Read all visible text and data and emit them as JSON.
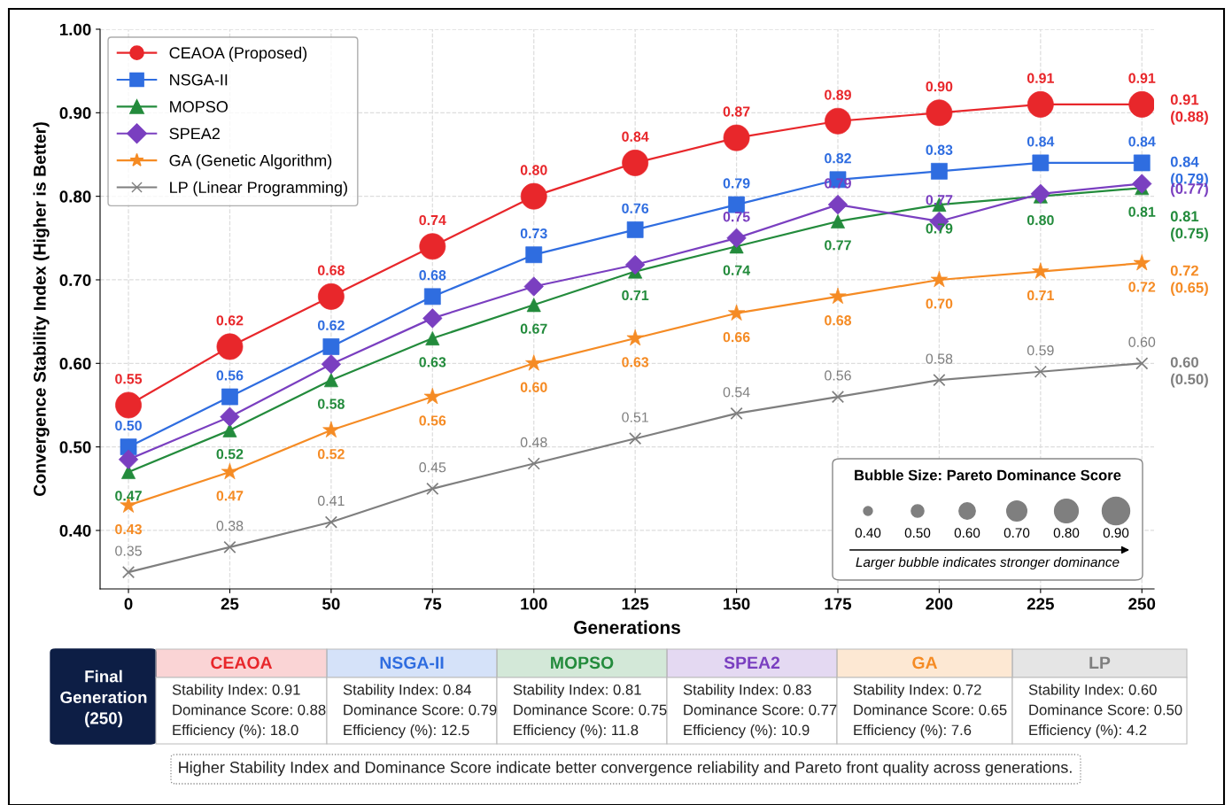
{
  "chart_data": {
    "type": "line",
    "xlabel": "Generations",
    "ylabel": "Convergence Stability Index (Higher is Better)",
    "x": [
      0,
      25,
      50,
      75,
      100,
      125,
      150,
      175,
      200,
      225,
      250
    ],
    "xlim": [
      -7,
      253
    ],
    "ylim": [
      0.33,
      1.0
    ],
    "xticks": [
      0,
      25,
      50,
      75,
      100,
      125,
      150,
      175,
      200,
      225,
      250
    ],
    "yticks": [
      {
        "value": 0.4,
        "label": "0.40"
      },
      {
        "value": 0.5,
        "label": "0.50"
      },
      {
        "value": 0.6,
        "label": "0.60"
      },
      {
        "value": 0.7,
        "label": "0.70"
      },
      {
        "value": 0.8,
        "label": "0.80"
      },
      {
        "value": 0.9,
        "label": "0.90"
      },
      {
        "value": 1.0,
        "label": "1.00"
      }
    ],
    "grid": true,
    "legend": "top left",
    "series": [
      {
        "name": "CEAOA (Proposed)",
        "color": "#e8272b",
        "marker": "circle",
        "values": [
          0.55,
          0.62,
          0.68,
          0.74,
          0.8,
          0.84,
          0.87,
          0.89,
          0.9,
          0.91,
          0.91
        ],
        "value_labels": [
          "0.55",
          "0.62",
          "0.68",
          "0.74",
          "0.80",
          "0.84",
          "0.87",
          "0.89",
          "0.90",
          "0.91",
          "0.91"
        ]
      },
      {
        "name": "NSGA-II",
        "color": "#2f6de0",
        "marker": "square",
        "values": [
          0.5,
          0.56,
          0.62,
          0.68,
          0.73,
          0.76,
          0.79,
          0.82,
          0.83,
          0.84,
          0.84
        ],
        "value_labels": [
          "0.50",
          "0.56",
          "0.62",
          "0.68",
          "0.73",
          "0.76",
          "0.79",
          "0.82",
          "0.83",
          "0.84",
          "0.84"
        ]
      },
      {
        "name": "MOPSO",
        "color": "#238b3c",
        "marker": "triangle",
        "values": [
          0.47,
          0.52,
          0.58,
          0.63,
          0.67,
          0.71,
          0.74,
          0.77,
          0.79,
          0.8,
          0.81
        ],
        "value_labels": [
          "0.47",
          "0.52",
          "0.58",
          "0.63",
          "0.67",
          "0.71",
          "0.74",
          "0.77",
          "0.79",
          "0.80",
          "0.81"
        ]
      },
      {
        "name": "SPEA2",
        "color": "#7a3fc0",
        "marker": "diamond",
        "values": [
          0.485,
          0.536,
          0.599,
          0.654,
          0.692,
          0.718,
          0.75,
          0.79,
          0.77,
          0.803,
          0.815
        ],
        "value_labels": [
          null,
          null,
          null,
          null,
          null,
          null,
          "0.75",
          "0.79",
          "0.77",
          null,
          null
        ]
      },
      {
        "name": "GA (Genetic Algorithm)",
        "color": "#f58b24",
        "marker": "star",
        "values": [
          0.43,
          0.47,
          0.52,
          0.56,
          0.6,
          0.63,
          0.66,
          0.68,
          0.7,
          0.71,
          0.72
        ],
        "value_labels": [
          "0.43",
          "0.47",
          "0.52",
          "0.56",
          "0.60",
          "0.63",
          "0.66",
          "0.68",
          "0.70",
          "0.71",
          "0.72"
        ]
      },
      {
        "name": "LP (Linear Programming)",
        "color": "#7f7f7f",
        "marker": "cross",
        "values": [
          0.35,
          0.38,
          0.41,
          0.45,
          0.48,
          0.51,
          0.54,
          0.56,
          0.58,
          0.59,
          0.6
        ],
        "value_labels": [
          "0.35",
          "0.38",
          "0.41",
          "0.45",
          "0.48",
          "0.51",
          "0.54",
          "0.56",
          "0.58",
          "0.59",
          "0.60"
        ]
      }
    ],
    "annotations": [
      "0.91\n(0.88)",
      "0.84\n(0.79)",
      "0.81\n(0.75)",
      "(0.77)",
      "0.72\n(0.65)",
      "0.60\n(0.50)",
      "Bubble Size: Pareto Dominance Score",
      "0.40",
      "0.50",
      "0.60",
      "0.70",
      "0.80",
      "0.90",
      "Larger bubble indicates stronger dominance",
      "Final\nGeneration\n(250)",
      "CEAOA",
      "NSGA-II",
      "MOPSO",
      "SPEA2",
      "GA",
      "LP",
      "Stability Index: 0.91\nDominance Score: 0.88\nEfficiency (%): 18.0",
      "Stability Index: 0.84\nDominance Score: 0.79\nEfficiency (%): 12.5",
      "Stability Index: 0.81\nDominance Score: 0.75\nEfficiency (%): 11.8",
      "Stability Index: 0.83\nDominance Score: 0.77\nEfficiency (%): 10.9",
      "Stability Index: 0.72\nDominance Score: 0.65\nEfficiency (%): 7.6",
      "Stability Index: 0.60\nDominance Score: 0.50\nEfficiency (%): 4.2",
      "Higher Stability Index and Dominance Score indicate better convergence reliability and Pareto front quality across generations."
    ]
  }
}
